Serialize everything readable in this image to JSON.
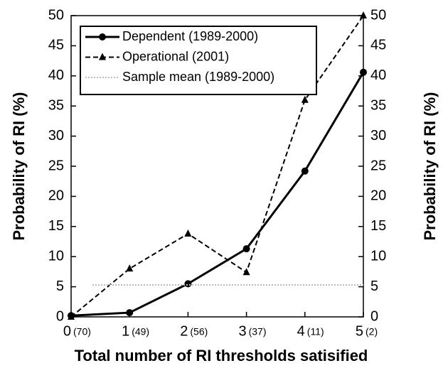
{
  "chart_data": {
    "type": "line",
    "x_label": "Total number of RI thresholds satisified",
    "y_label": "Probability of RI (%)",
    "y2_label": "Probability of RI (%)",
    "x": [
      0,
      1,
      2,
      3,
      4,
      5
    ],
    "sample_sizes": [
      "(70)",
      "(49)",
      "(56)",
      "(37)",
      "(11)",
      "(2)"
    ],
    "xlim": [
      0,
      5
    ],
    "xticks": [
      0,
      1,
      2,
      3,
      4,
      5
    ],
    "ylim": [
      0,
      50
    ],
    "yticks": [
      0,
      5,
      10,
      15,
      20,
      25,
      30,
      35,
      40,
      45,
      50
    ],
    "y2lim": [
      0,
      50
    ],
    "y2ticks": [
      0,
      5,
      10,
      15,
      20,
      25,
      30,
      35,
      40,
      45,
      50
    ],
    "legend": "upper left",
    "series": [
      {
        "name": "Dependent (1989-2000)",
        "color": "#000000",
        "dash": "solid",
        "marker": "circle",
        "values": [
          0.2,
          0.7,
          5.5,
          11.3,
          24.2,
          40.6
        ]
      },
      {
        "name": "Operational (2001)",
        "color": "#000000",
        "dash": "dashed",
        "marker": "triangle",
        "values": [
          0,
          8.0,
          13.8,
          7.4,
          36.0,
          50
        ]
      },
      {
        "name": "Sample mean (1989-2000)",
        "color": "#bbbbbb",
        "dash": "dotted",
        "marker": "none",
        "value": 5.3
      }
    ]
  }
}
